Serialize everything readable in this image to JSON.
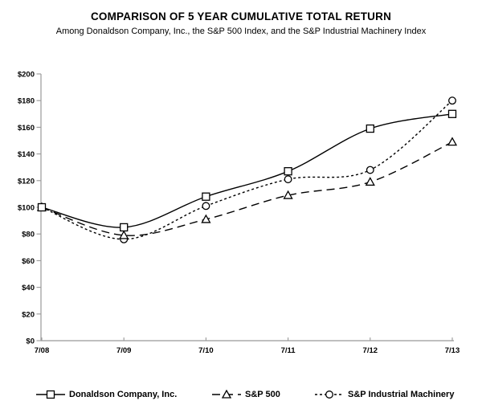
{
  "header": {
    "title": "COMPARISON OF 5 YEAR CUMULATIVE TOTAL RETURN",
    "subtitle": "Among Donaldson Company, Inc., the S&P 500 Index, and the S&P Industrial Machinery Index"
  },
  "chart_data": {
    "type": "line",
    "x": [
      "7/08",
      "7/09",
      "7/10",
      "7/11",
      "7/12",
      "7/13"
    ],
    "series": [
      {
        "name": "Donaldson Company, Inc.",
        "marker": "square",
        "line": "solid",
        "values": [
          100,
          85,
          108,
          127,
          159,
          170
        ]
      },
      {
        "name": "S&P 500",
        "marker": "triangle",
        "line": "long-dash",
        "values": [
          100,
          79,
          91,
          109,
          119,
          149
        ]
      },
      {
        "name": "S&P Industrial Machinery",
        "marker": "circle",
        "line": "short-dash",
        "values": [
          100,
          76,
          101,
          121,
          128,
          180
        ]
      }
    ],
    "ylim": [
      0,
      200
    ],
    "ytick_step": 20,
    "ytick_prefix": "$",
    "xlabel": "",
    "ylabel": "",
    "grid": false,
    "legend_position": "bottom",
    "colors": {
      "series": "#000000",
      "axis": "#999999",
      "text": "#000000",
      "background": "#ffffff"
    }
  }
}
